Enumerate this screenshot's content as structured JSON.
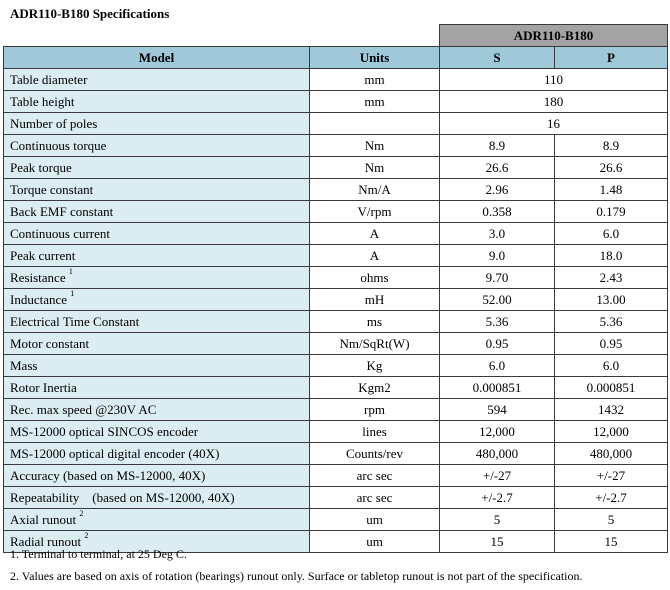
{
  "title": "ADR110-B180 Specifications",
  "model_group": "ADR110-B180",
  "headers": {
    "model": "Model",
    "units": "Units",
    "s": "S",
    "p": "P"
  },
  "rows": [
    {
      "label": "Table diameter",
      "sup": "",
      "unit": "mm",
      "merged": "110"
    },
    {
      "label": "Table height",
      "sup": "",
      "unit": "mm",
      "merged": "180"
    },
    {
      "label": "Number of poles",
      "sup": "",
      "unit": "",
      "merged": "16"
    },
    {
      "label": "Continuous torque",
      "sup": "",
      "unit": "Nm",
      "s": "8.9",
      "p": "8.9"
    },
    {
      "label": "Peak torque",
      "sup": "",
      "unit": "Nm",
      "s": "26.6",
      "p": "26.6"
    },
    {
      "label": "Torque constant",
      "sup": "",
      "unit": "Nm/A",
      "s": "2.96",
      "p": "1.48"
    },
    {
      "label": "Back EMF constant",
      "sup": "",
      "unit": "V/rpm",
      "s": "0.358",
      "p": "0.179"
    },
    {
      "label": "Continuous current",
      "sup": "",
      "unit": "A",
      "s": "3.0",
      "p": "6.0"
    },
    {
      "label": "Peak current",
      "sup": "",
      "unit": "A",
      "s": "9.0",
      "p": "18.0"
    },
    {
      "label": "Resistance",
      "sup": "1",
      "unit": "ohms",
      "s": "9.70",
      "p": "2.43"
    },
    {
      "label": "Inductance",
      "sup": "1",
      "unit": "mH",
      "s": "52.00",
      "p": "13.00"
    },
    {
      "label": "Electrical Time Constant",
      "sup": "",
      "unit": "ms",
      "s": "5.36",
      "p": "5.36"
    },
    {
      "label": "Motor constant",
      "sup": "",
      "unit": "Nm/SqRt(W)",
      "s": "0.95",
      "p": "0.95"
    },
    {
      "label": "Mass",
      "sup": "",
      "unit": "Kg",
      "s": "6.0",
      "p": "6.0"
    },
    {
      "label": "Rotor Inertia",
      "sup": "",
      "unit": "Kgm2",
      "s": "0.000851",
      "p": "0.000851"
    },
    {
      "label": "Rec. max speed @230V AC",
      "sup": "",
      "unit": "rpm",
      "s": "594",
      "p": "1432"
    },
    {
      "label": "MS-12000 optical SINCOS encoder",
      "sup": "",
      "unit": "lines",
      "s": "12,000",
      "p": "12,000"
    },
    {
      "label": "MS-12000 optical digital encoder (40X)",
      "sup": "",
      "unit": "Counts/rev",
      "s": "480,000",
      "p": "480,000"
    },
    {
      "label": "Accuracy (based on MS-12000, 40X)",
      "sup": "",
      "unit": "arc sec",
      "s": "+/-27",
      "p": "+/-27"
    },
    {
      "label": "Repeatability    (based on MS-12000, 40X)",
      "sup": "",
      "unit": "arc sec",
      "s": "+/-2.7",
      "p": "+/-2.7"
    },
    {
      "label": "Axial runout",
      "sup": "2",
      "unit": "um",
      "s": "5",
      "p": "5"
    },
    {
      "label": "Radial runout",
      "sup": "2",
      "unit": "um",
      "s": "15",
      "p": "15"
    }
  ],
  "notes": [
    "1. Terminal to terminal, at 25 Deg C.",
    "2. Values are based on axis of rotation (bearings) runout only. Surface or tabletop runout is not part of the specification."
  ]
}
